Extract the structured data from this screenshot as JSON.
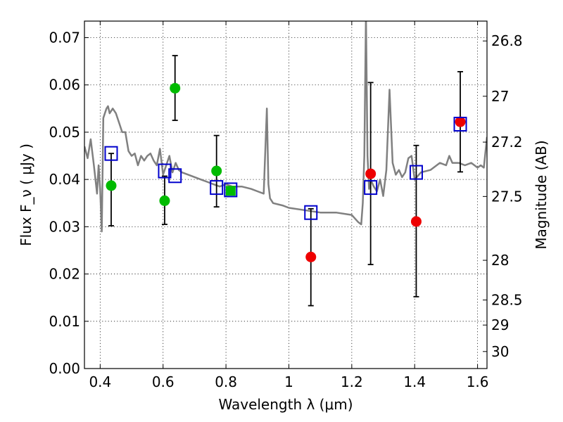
{
  "chart_data": {
    "type": "scatter",
    "title": "",
    "xlabel": "Wavelength  λ (μm)",
    "ylabel": "Flux  F_ν  ( μJy )",
    "ylabel_right": "Magnitude (AB)",
    "xlim": [
      0.35,
      1.63
    ],
    "ylim": [
      0.0,
      0.0735
    ],
    "grid": true,
    "x_ticks": [
      0.4,
      0.6,
      0.8,
      1.0,
      1.2,
      1.4,
      1.6
    ],
    "x_tick_labels": [
      "0.4",
      "0.6",
      "0.8",
      "1",
      "1.2",
      "1.4",
      "1.6"
    ],
    "y_ticks": [
      0.0,
      0.01,
      0.02,
      0.03,
      0.04,
      0.05,
      0.06,
      0.07
    ],
    "y_tick_labels": [
      "0.00",
      "0.01",
      "0.02",
      "0.03",
      "0.04",
      "0.05",
      "0.06",
      "0.07"
    ],
    "right_ticks": [
      {
        "label": "26.8",
        "flux": 0.0693
      },
      {
        "label": "27",
        "flux": 0.0576
      },
      {
        "label": "27.2",
        "flux": 0.0479
      },
      {
        "label": "27.5",
        "flux": 0.0364
      },
      {
        "label": "28",
        "flux": 0.0229
      },
      {
        "label": "28.5",
        "flux": 0.0145
      },
      {
        "label": "29",
        "flux": 0.0092
      },
      {
        "label": "30",
        "flux": 0.0036
      }
    ],
    "colors": {
      "template": "#808080",
      "model": "#0000cc",
      "green": "#00bb00",
      "red": "#ee0000",
      "errorbar": "#000000"
    },
    "template_spectrum": {
      "x": [
        0.35,
        0.36,
        0.37,
        0.38,
        0.39,
        0.395,
        0.4,
        0.405,
        0.41,
        0.415,
        0.42,
        0.425,
        0.43,
        0.44,
        0.45,
        0.46,
        0.47,
        0.48,
        0.49,
        0.5,
        0.51,
        0.52,
        0.53,
        0.54,
        0.55,
        0.56,
        0.57,
        0.58,
        0.59,
        0.6,
        0.61,
        0.62,
        0.63,
        0.64,
        0.65,
        0.66,
        0.68,
        0.7,
        0.72,
        0.74,
        0.76,
        0.78,
        0.8,
        0.82,
        0.85,
        0.88,
        0.9,
        0.92,
        0.93,
        0.935,
        0.94,
        0.95,
        0.98,
        1.0,
        1.05,
        1.1,
        1.15,
        1.2,
        1.22,
        1.23,
        1.235,
        1.24,
        1.245,
        1.25,
        1.255,
        1.26,
        1.27,
        1.28,
        1.29,
        1.3,
        1.31,
        1.32,
        1.33,
        1.34,
        1.35,
        1.36,
        1.37,
        1.38,
        1.39,
        1.4,
        1.42,
        1.45,
        1.48,
        1.5,
        1.51,
        1.52,
        1.54,
        1.56,
        1.58,
        1.6,
        1.61,
        1.62,
        1.63
      ],
      "y": [
        0.047,
        0.0445,
        0.0485,
        0.043,
        0.037,
        0.043,
        0.038,
        0.029,
        0.053,
        0.054,
        0.055,
        0.0555,
        0.054,
        0.055,
        0.054,
        0.052,
        0.05,
        0.05,
        0.046,
        0.045,
        0.0455,
        0.043,
        0.045,
        0.044,
        0.045,
        0.0455,
        0.044,
        0.043,
        0.0465,
        0.041,
        0.043,
        0.045,
        0.0415,
        0.0435,
        0.042,
        0.0415,
        0.041,
        0.0405,
        0.04,
        0.0395,
        0.039,
        0.0385,
        0.039,
        0.0385,
        0.0385,
        0.038,
        0.0375,
        0.037,
        0.055,
        0.039,
        0.036,
        0.035,
        0.0345,
        0.034,
        0.0335,
        0.033,
        0.033,
        0.0325,
        0.031,
        0.0305,
        0.035,
        0.045,
        0.075,
        0.045,
        0.038,
        0.04,
        0.0385,
        0.0375,
        0.04,
        0.0365,
        0.042,
        0.059,
        0.0435,
        0.041,
        0.042,
        0.0405,
        0.0415,
        0.0445,
        0.045,
        0.04,
        0.0415,
        0.042,
        0.0435,
        0.043,
        0.045,
        0.0435,
        0.0435,
        0.043,
        0.0435,
        0.0425,
        0.043,
        0.0425,
        0.049
      ]
    },
    "series": [
      {
        "points": [
          {
            "x": 0.435,
            "y": 0.0455
          },
          {
            "x": 0.605,
            "y": 0.0418
          },
          {
            "x": 0.638,
            "y": 0.0408
          },
          {
            "x": 0.77,
            "y": 0.0383
          },
          {
            "x": 0.815,
            "y": 0.0378
          },
          {
            "x": 1.07,
            "y": 0.033
          },
          {
            "x": 1.26,
            "y": 0.0383
          },
          {
            "x": 1.405,
            "y": 0.0415
          },
          {
            "x": 1.545,
            "y": 0.0517
          }
        ]
      },
      {
        "points": [
          {
            "x": 0.435,
            "y": 0.0387,
            "ylo": 0.0302,
            "yhi": 0.0455
          },
          {
            "x": 0.605,
            "y": 0.0355,
            "ylo": 0.0305,
            "yhi": 0.0407
          },
          {
            "x": 0.638,
            "y": 0.0593,
            "ylo": 0.0525,
            "yhi": 0.0662
          },
          {
            "x": 0.77,
            "y": 0.0418,
            "ylo": 0.0342,
            "yhi": 0.0493
          },
          {
            "x": 0.815,
            "y": 0.0376
          }
        ]
      },
      {
        "points": [
          {
            "x": 1.07,
            "y": 0.0236,
            "ylo": 0.0133,
            "yhi": 0.0338
          },
          {
            "x": 1.26,
            "y": 0.0412,
            "ylo": 0.022,
            "yhi": 0.0605
          },
          {
            "x": 1.405,
            "y": 0.0311,
            "ylo": 0.0152,
            "yhi": 0.0472
          },
          {
            "x": 1.545,
            "y": 0.0522,
            "ylo": 0.0416,
            "yhi": 0.0628
          }
        ]
      }
    ]
  }
}
